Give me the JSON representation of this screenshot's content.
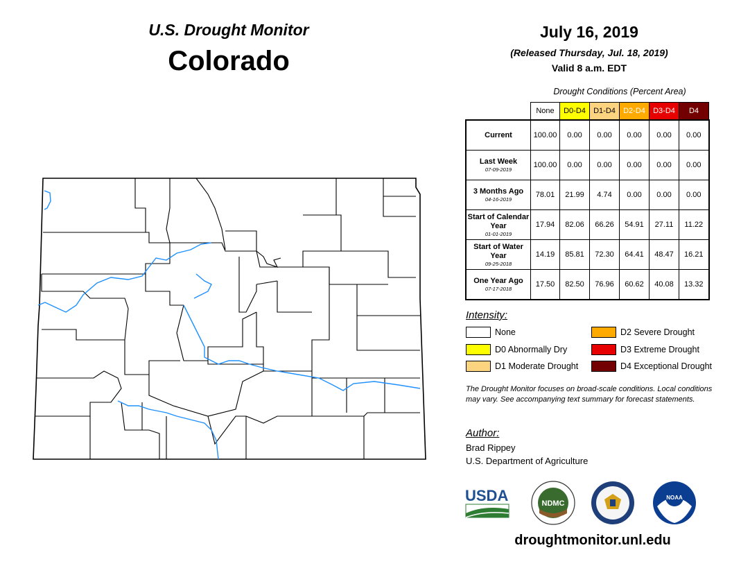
{
  "header": {
    "monitor_title": "U.S. Drought Monitor",
    "state": "Colorado",
    "date": "July 16, 2019",
    "released": "(Released Thursday, Jul. 18, 2019)",
    "valid": "Valid 8 a.m. EDT"
  },
  "table": {
    "caption": "Drought Conditions (Percent Area)",
    "columns": [
      "None",
      "D0-D4",
      "D1-D4",
      "D2-D4",
      "D3-D4",
      "D4"
    ],
    "column_colors": [
      "#ffffff",
      "#ffff00",
      "#fcd37f",
      "#ffaa00",
      "#e60000",
      "#730000"
    ],
    "column_text_colors": [
      "#000000",
      "#000000",
      "#000000",
      "#ffffff",
      "#ffffff",
      "#ffffff"
    ],
    "rows": [
      {
        "label": "Current",
        "date": "",
        "values": [
          "100.00",
          "0.00",
          "0.00",
          "0.00",
          "0.00",
          "0.00"
        ]
      },
      {
        "label": "Last Week",
        "date": "07-09-2019",
        "values": [
          "100.00",
          "0.00",
          "0.00",
          "0.00",
          "0.00",
          "0.00"
        ]
      },
      {
        "label": "3 Months Ago",
        "date": "04-16-2019",
        "values": [
          "78.01",
          "21.99",
          "4.74",
          "0.00",
          "0.00",
          "0.00"
        ]
      },
      {
        "label": "Start of Calendar Year",
        "date": "01-01-2019",
        "values": [
          "17.94",
          "82.06",
          "66.26",
          "54.91",
          "27.11",
          "11.22"
        ]
      },
      {
        "label": "Start of Water Year",
        "date": "09-25-2018",
        "values": [
          "14.19",
          "85.81",
          "72.30",
          "64.41",
          "48.47",
          "16.21"
        ]
      },
      {
        "label": "One Year Ago",
        "date": "07-17-2018",
        "values": [
          "17.50",
          "82.50",
          "76.96",
          "60.62",
          "40.08",
          "13.32"
        ]
      }
    ]
  },
  "legend": {
    "title": "Intensity:",
    "items": [
      {
        "label": "None",
        "color": "#ffffff"
      },
      {
        "label": "D0 Abnormally Dry",
        "color": "#ffff00"
      },
      {
        "label": "D1 Moderate Drought",
        "color": "#fcd37f"
      },
      {
        "label": "D2 Severe Drought",
        "color": "#ffaa00"
      },
      {
        "label": "D3 Extreme Drought",
        "color": "#e60000"
      },
      {
        "label": "D4 Exceptional Drought",
        "color": "#730000"
      }
    ]
  },
  "note": "The Drought Monitor focuses on broad-scale conditions. Local conditions may vary. See accompanying text summary for forecast statements.",
  "author": {
    "title": "Author:",
    "name": "Brad Rippey",
    "org": "U.S. Department of Agriculture"
  },
  "logos": {
    "usda": "USDA",
    "ndmc": "NDMC",
    "noaa": "NOAA",
    "commerce": "commerce-seal-icon"
  },
  "url": "droughtmonitor.unl.edu",
  "map": {
    "state_fill": "#ffffff",
    "river_color": "#1e90ff"
  }
}
